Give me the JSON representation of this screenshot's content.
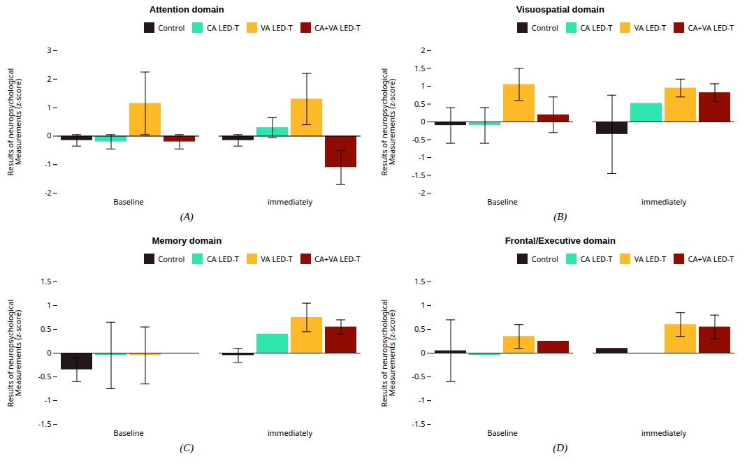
{
  "chart_data": [
    {
      "type": "bar",
      "title": "Attention domain",
      "annotations": [
        "(A)"
      ],
      "ylabel": "Results of neuropsychological\nMeasurements (z-score)",
      "categories": [
        "Baseline",
        "immediately"
      ],
      "series": [
        {
          "name": "Control",
          "values": [
            -0.15,
            -0.15
          ],
          "errors": [
            0.2,
            0.2
          ]
        },
        {
          "name": "CA LED-T",
          "values": [
            -0.2,
            0.3
          ],
          "errors": [
            0.25,
            0.35
          ]
        },
        {
          "name": "VA LED-T",
          "values": [
            1.15,
            1.3
          ],
          "errors": [
            1.1,
            0.9
          ]
        },
        {
          "name": "CA+VA LED-T",
          "values": [
            -0.2,
            -1.1
          ],
          "errors": [
            0.25,
            0.6
          ]
        }
      ],
      "ylim": [
        -2,
        3
      ],
      "yticks": [
        -2,
        -1,
        0,
        1,
        2,
        3
      ],
      "legend": "upper right",
      "grid": false
    },
    {
      "type": "bar",
      "title": "Visuospatial domain",
      "annotations": [
        "(B)"
      ],
      "ylabel": "Results of neuropsychological\nMeasurements (z-score)",
      "categories": [
        "Baseline",
        "immediately"
      ],
      "series": [
        {
          "name": "Control",
          "values": [
            -0.1,
            -0.35
          ],
          "errors": [
            0.5,
            1.1
          ]
        },
        {
          "name": "CA LED-T",
          "values": [
            -0.1,
            0.52
          ],
          "errors": [
            0.5,
            0.0
          ]
        },
        {
          "name": "VA LED-T",
          "values": [
            1.05,
            0.95
          ],
          "errors": [
            0.45,
            0.25
          ]
        },
        {
          "name": "CA+VA LED-T",
          "values": [
            0.2,
            0.82
          ],
          "errors": [
            0.5,
            0.25
          ]
        }
      ],
      "ylim": [
        -2,
        2
      ],
      "yticks": [
        -2,
        -1.5,
        -1,
        -0.5,
        0,
        0.5,
        1,
        1.5,
        2
      ],
      "legend": "upper right",
      "grid": false
    },
    {
      "type": "bar",
      "title": "Memory domain",
      "annotations": [
        "(C)"
      ],
      "ylabel": "Results of neuropsychological\nMeasurements (z-score)",
      "categories": [
        "Baseline",
        "immediately"
      ],
      "series": [
        {
          "name": "Control",
          "values": [
            -0.35,
            -0.05
          ],
          "errors": [
            0.25,
            0.15
          ]
        },
        {
          "name": "CA LED-T",
          "values": [
            -0.05,
            0.4
          ],
          "errors": [
            0.7,
            0.0
          ]
        },
        {
          "name": "VA LED-T",
          "values": [
            -0.05,
            0.75
          ],
          "errors": [
            0.6,
            0.3
          ]
        },
        {
          "name": "CA+VA LED-T",
          "values": [
            0.0,
            0.55
          ],
          "errors": [
            0.0,
            0.15
          ]
        }
      ],
      "ylim": [
        -1.5,
        1.5
      ],
      "yticks": [
        -1.5,
        -1,
        -0.5,
        0,
        0.5,
        1,
        1.5
      ],
      "legend": "upper right",
      "grid": false
    },
    {
      "type": "bar",
      "title": "Frontal/Executive domain",
      "annotations": [
        "(D)"
      ],
      "ylabel": "Results of neuropsychological\nMeasurements (z-score)",
      "categories": [
        "Baseline",
        "immediately"
      ],
      "series": [
        {
          "name": "Control",
          "values": [
            0.05,
            0.1
          ],
          "errors": [
            0.65,
            0.0
          ]
        },
        {
          "name": "CA LED-T",
          "values": [
            -0.05,
            0.0
          ],
          "errors": [
            0.0,
            0.0
          ]
        },
        {
          "name": "VA LED-T",
          "values": [
            0.35,
            0.6
          ],
          "errors": [
            0.25,
            0.25
          ]
        },
        {
          "name": "CA+VA LED-T",
          "values": [
            0.25,
            0.55
          ],
          "errors": [
            0.0,
            0.25
          ]
        }
      ],
      "ylim": [
        -1.5,
        1.5
      ],
      "yticks": [
        -1.5,
        -1,
        -0.5,
        0,
        0.5,
        1,
        1.5
      ],
      "legend": "upper right",
      "grid": false
    }
  ]
}
